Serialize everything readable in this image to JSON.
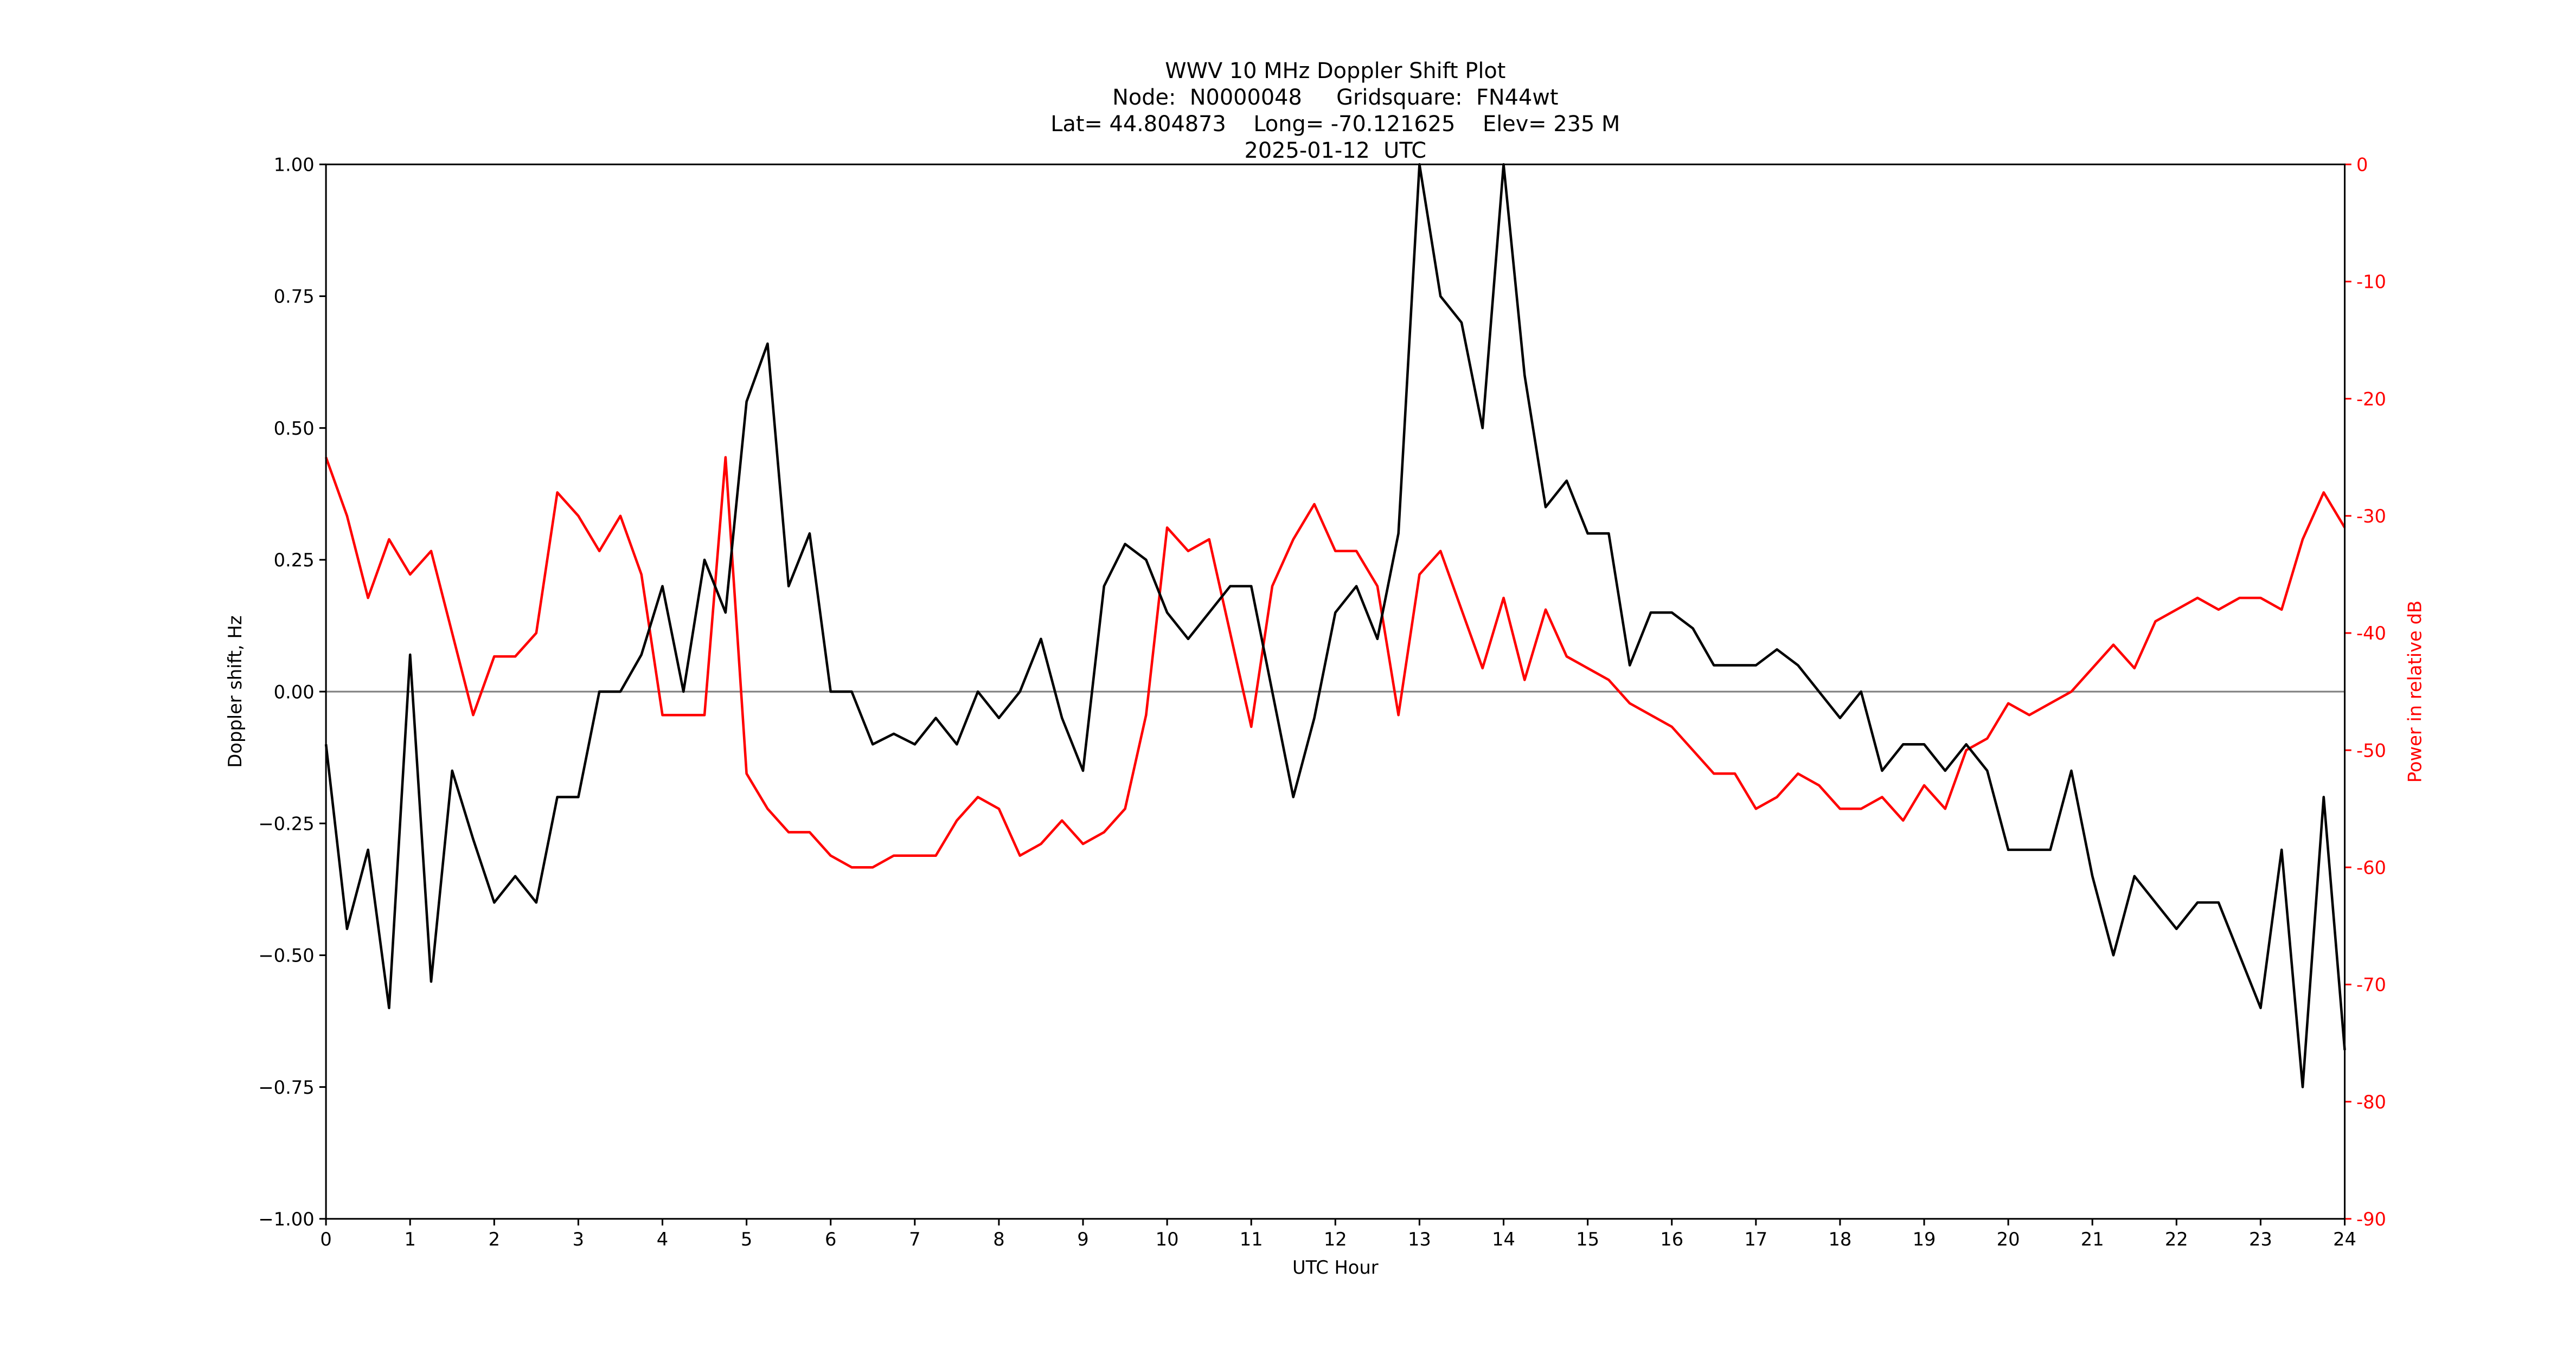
{
  "chart_data": {
    "type": "line",
    "title": [
      "WWV 10 MHz Doppler Shift Plot",
      "Node:  N0000048     Gridsquare:  FN44wt",
      "Lat= 44.804873    Long= -70.121625    Elev= 235 M",
      "2025-01-12  UTC"
    ],
    "xlabel": "UTC Hour",
    "ylabel": "Doppler shift, Hz",
    "y2label": "Power in relative dB",
    "x": [
      0,
      0.25,
      0.5,
      0.75,
      1,
      1.25,
      1.5,
      1.75,
      2,
      2.25,
      2.5,
      2.75,
      3,
      3.25,
      3.5,
      3.75,
      4,
      4.25,
      4.5,
      4.75,
      5,
      5.25,
      5.5,
      5.75,
      6,
      6.25,
      6.5,
      6.75,
      7,
      7.25,
      7.5,
      7.75,
      8,
      8.25,
      8.5,
      8.75,
      9,
      9.25,
      9.5,
      9.75,
      10,
      10.25,
      10.5,
      10.75,
      11,
      11.25,
      11.5,
      11.75,
      12,
      12.25,
      12.5,
      12.75,
      13,
      13.25,
      13.5,
      13.75,
      14,
      14.25,
      14.5,
      14.75,
      15,
      15.25,
      15.5,
      15.75,
      16,
      16.25,
      16.5,
      16.75,
      17,
      17.25,
      17.5,
      17.75,
      18,
      18.25,
      18.5,
      18.75,
      19,
      19.25,
      19.5,
      19.75,
      20,
      20.25,
      20.5,
      20.75,
      21,
      21.25,
      21.5,
      21.75,
      22,
      22.25,
      22.5,
      22.75,
      23,
      23.25,
      23.5,
      23.75,
      24
    ],
    "series": [
      {
        "name": "Doppler shift",
        "color": "#000000",
        "values": [
          -0.1,
          -0.45,
          -0.3,
          -0.6,
          0.07,
          -0.55,
          -0.15,
          -0.28,
          -0.4,
          -0.35,
          -0.4,
          -0.2,
          -0.2,
          0.0,
          0.0,
          0.07,
          0.2,
          0.0,
          0.25,
          0.15,
          0.55,
          0.66,
          0.2,
          0.3,
          0.0,
          0.0,
          -0.1,
          -0.08,
          -0.1,
          -0.05,
          -0.1,
          0.0,
          -0.05,
          0.0,
          0.1,
          -0.05,
          -0.15,
          0.2,
          0.28,
          0.25,
          0.15,
          0.1,
          0.15,
          0.2,
          0.2,
          0.0,
          -0.2,
          -0.05,
          0.15,
          0.2,
          0.1,
          0.3,
          1.0,
          0.75,
          0.7,
          0.5,
          1.0,
          0.6,
          0.35,
          0.4,
          0.3,
          0.3,
          0.05,
          0.15,
          0.15,
          0.12,
          0.05,
          0.05,
          0.05,
          0.08,
          0.05,
          0.0,
          -0.05,
          0.0,
          -0.15,
          -0.1,
          -0.1,
          -0.15,
          -0.1,
          -0.15,
          -0.3,
          -0.3,
          -0.3,
          -0.15,
          -0.35,
          -0.5,
          -0.35,
          -0.4,
          -0.45,
          -0.4,
          -0.4,
          -0.5,
          -0.6,
          -0.3,
          -0.75,
          -0.2,
          -0.68
        ]
      },
      {
        "name": "Power",
        "color": "#ff0000",
        "axis": "y2",
        "values": [
          -25,
          -30,
          -37,
          -32,
          -35,
          -33,
          -40,
          -47,
          -42,
          -42,
          -40,
          -28,
          -30,
          -33,
          -30,
          -35,
          -47,
          -47,
          -47,
          -25,
          -52,
          -55,
          -57,
          -57,
          -59,
          -60,
          -60,
          -59,
          -59,
          -59,
          -56,
          -54,
          -55,
          -59,
          -58,
          -56,
          -58,
          -57,
          -55,
          -47,
          -31,
          -33,
          -32,
          -40,
          -48,
          -36,
          -32,
          -29,
          -33,
          -33,
          -36,
          -47,
          -35,
          -33,
          -38,
          -43,
          -37,
          -44,
          -38,
          -42,
          -43,
          -44,
          -46,
          -47,
          -48,
          -50,
          -52,
          -52,
          -55,
          -54,
          -52,
          -53,
          -55,
          -55,
          -54,
          -56,
          -53,
          -55,
          -50,
          -49,
          -46,
          -47,
          -46,
          -45,
          -43,
          -41,
          -43,
          -39,
          -38,
          -37,
          -38,
          -37,
          -37,
          -38,
          -32,
          -28,
          -31
        ]
      }
    ],
    "xlim": [
      0,
      24
    ],
    "xticks": [
      0,
      1,
      2,
      3,
      4,
      5,
      6,
      7,
      8,
      9,
      10,
      11,
      12,
      13,
      14,
      15,
      16,
      17,
      18,
      19,
      20,
      21,
      22,
      23,
      24
    ],
    "ylim": [
      -1,
      1
    ],
    "yticks": [
      {
        "value": -1,
        "label": "−1.00"
      },
      {
        "value": -0.75,
        "label": "−0.75"
      },
      {
        "value": -0.5,
        "label": "−0.50"
      },
      {
        "value": -0.25,
        "label": "−0.25"
      },
      {
        "value": 0,
        "label": "0.00"
      },
      {
        "value": 0.25,
        "label": "0.25"
      },
      {
        "value": 0.5,
        "label": "0.50"
      },
      {
        "value": 0.75,
        "label": "0.75"
      },
      {
        "value": 1,
        "label": "1.00"
      }
    ],
    "y2lim": [
      -90,
      0
    ],
    "y2ticks": [
      -90,
      -80,
      -70,
      -60,
      -50,
      -40,
      -30,
      -20,
      -10,
      0
    ],
    "y2color": "#ff0000",
    "hline": 0,
    "hline_color": "#808080"
  }
}
